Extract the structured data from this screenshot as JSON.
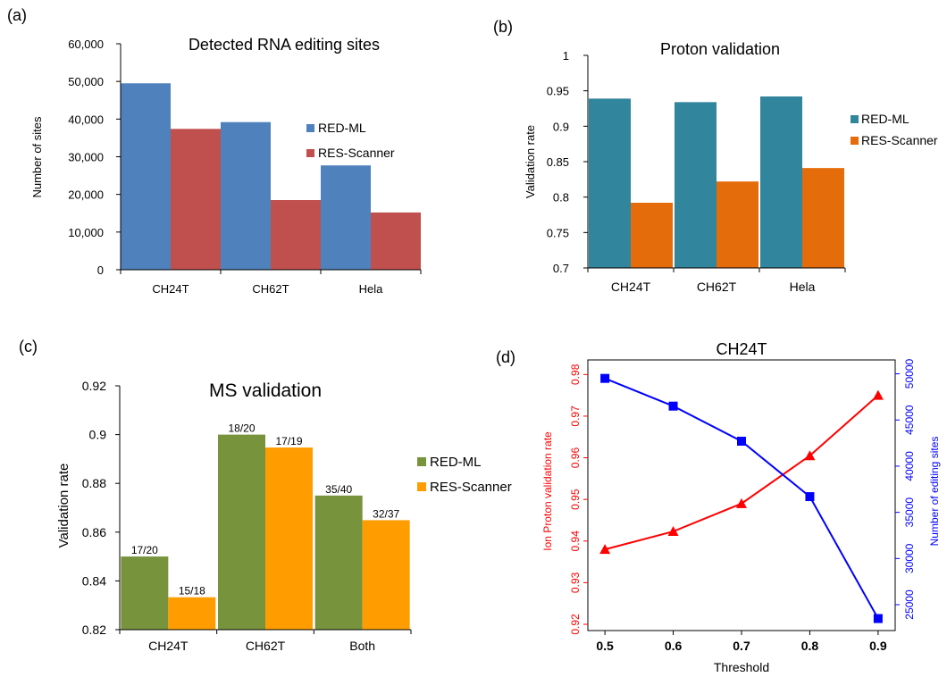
{
  "panels": {
    "a": {
      "letter": "(a)"
    },
    "b": {
      "letter": "(b)"
    },
    "c": {
      "letter": "(c)"
    },
    "d": {
      "letter": "(d)"
    }
  },
  "chart_data": [
    {
      "id": "a",
      "type": "bar",
      "title": "Detected RNA editing sites",
      "xlabel": "",
      "ylabel": "Number of sites",
      "categories": [
        "CH24T",
        "CH62T",
        "Hela"
      ],
      "series": [
        {
          "name": "RED-ML",
          "values": [
            49500,
            39200,
            27700
          ],
          "color": "#4f81bd"
        },
        {
          "name": "RES-Scanner",
          "values": [
            37400,
            18500,
            15200
          ],
          "color": "#c0504d"
        }
      ],
      "ylim": [
        0,
        60000
      ],
      "yticks": [
        "0",
        "10,000",
        "20,000",
        "30,000",
        "40,000",
        "50,000",
        "60,000"
      ],
      "grid": false,
      "legend": "right"
    },
    {
      "id": "b",
      "type": "bar",
      "title": "Proton validation",
      "xlabel": "",
      "ylabel": "Validation rate",
      "categories": [
        "CH24T",
        "CH62T",
        "Hela"
      ],
      "series": [
        {
          "name": "RED-ML",
          "values": [
            0.939,
            0.934,
            0.942
          ],
          "color": "#31859c"
        },
        {
          "name": "RES-Scanner",
          "values": [
            0.792,
            0.822,
            0.841
          ],
          "color": "#e46c0a"
        }
      ],
      "ylim": [
        0.7,
        1
      ],
      "yticks": [
        "0.7",
        "0.75",
        "0.8",
        "0.85",
        "0.9",
        "0.95",
        "1"
      ],
      "grid": false,
      "legend": "right"
    },
    {
      "id": "c",
      "type": "bar",
      "title": "MS validation",
      "xlabel": "",
      "ylabel": "Validation rate",
      "categories": [
        "CH24T",
        "CH62T",
        "Both"
      ],
      "series": [
        {
          "name": "RED-ML",
          "values": [
            0.85,
            0.9,
            0.875
          ],
          "labels": [
            "17/20",
            "18/20",
            "35/40"
          ],
          "color": "#77933c"
        },
        {
          "name": "RES-Scanner",
          "values": [
            0.8333,
            0.8947,
            0.8649
          ],
          "labels": [
            "15/18",
            "17/19",
            "32/37"
          ],
          "color": "#ff9c00"
        }
      ],
      "ylim": [
        0.82,
        0.92
      ],
      "yticks": [
        "0.82",
        "0.84",
        "0.86",
        "0.88",
        "0.9",
        "0.92"
      ],
      "grid": false,
      "legend": "right"
    },
    {
      "id": "d",
      "type": "line",
      "title": "CH24T",
      "xlabel": "Threshold",
      "ylabel": "Ion Proton validation rate",
      "ylabel2": "Number of editing sites",
      "x": [
        0.5,
        0.6,
        0.7,
        0.8,
        0.9
      ],
      "xticks": [
        "0.5",
        "0.6",
        "0.7",
        "0.8",
        "0.9"
      ],
      "xlim": [
        0.475,
        0.925
      ],
      "series": [
        {
          "name": "",
          "axis": "left",
          "values": [
            0.938,
            0.9423,
            0.949,
            0.9605,
            0.975
          ],
          "color": "#ff0000",
          "marker": "triangle"
        },
        {
          "name": "",
          "axis": "right",
          "values": [
            49500,
            46500,
            42700,
            36700,
            23500
          ],
          "color": "#0000ff",
          "marker": "square"
        }
      ],
      "ylim": [
        0.9185,
        0.9835
      ],
      "yticks": [
        "0.92",
        "0.93",
        "0.94",
        "0.95",
        "0.96",
        "0.97",
        "0.98"
      ],
      "ylim2": [
        22200,
        51500
      ],
      "yticks2": [
        "25000",
        "30000",
        "35000",
        "40000",
        "45000",
        "50000"
      ],
      "grid": false,
      "legend": "none"
    }
  ]
}
